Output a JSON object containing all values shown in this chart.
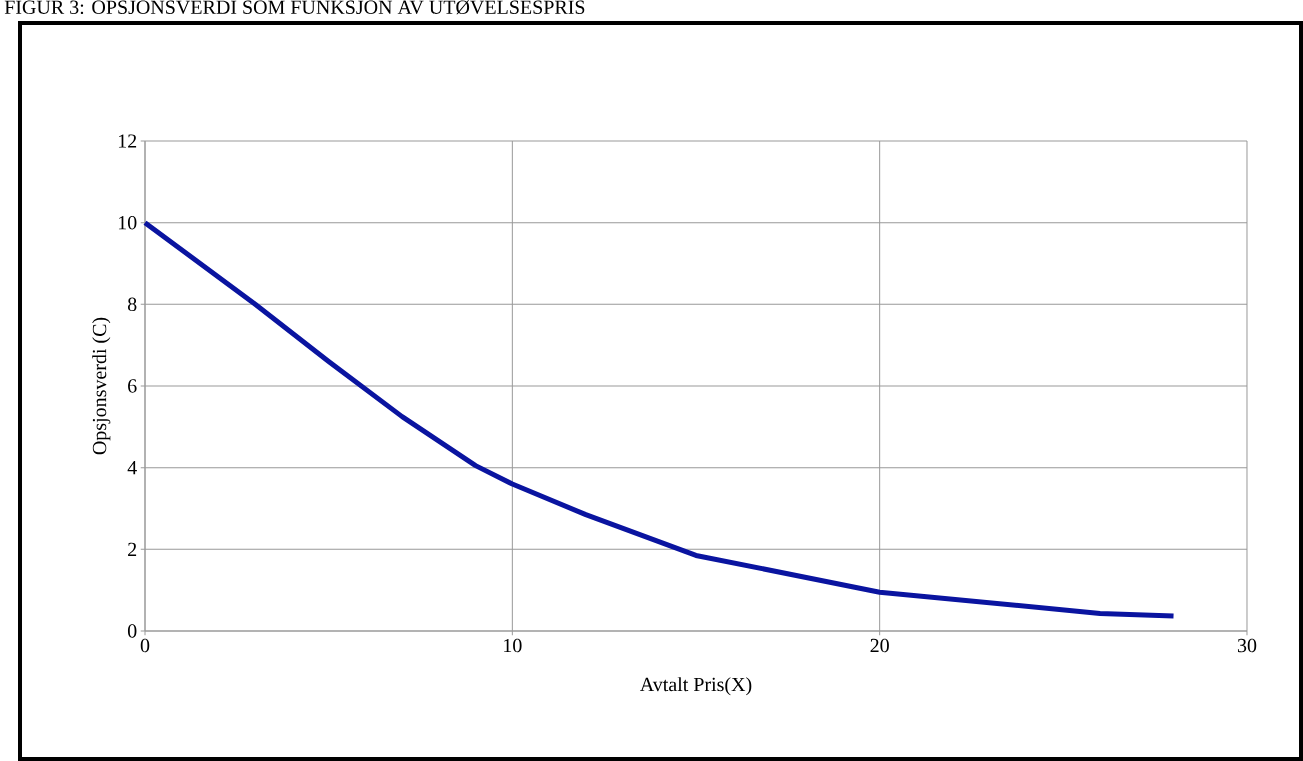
{
  "chart_data": {
    "type": "line",
    "title": "FIGUR 3: OPSJONSVERDI SOM FUNKSJON AV UTØVELSESPRIS",
    "xlabel": "Avtalt Pris(X)",
    "ylabel": "Opsjonsverdi (C)",
    "x": [
      0,
      3,
      5,
      7,
      9,
      10,
      12,
      15,
      20,
      26,
      28
    ],
    "series": [
      {
        "color": "#0a14a0",
        "values": [
          10,
          8.0,
          6.6,
          5.25,
          4.05,
          3.6,
          2.85,
          1.85,
          0.95,
          0.43,
          0.37
        ]
      }
    ],
    "xlim": [
      0,
      30
    ],
    "xticks": [
      0,
      10,
      20,
      30
    ],
    "ylim": [
      0,
      12
    ],
    "yticks": [
      0,
      2,
      4,
      6,
      8,
      10,
      12
    ],
    "grid": true,
    "marker": "none",
    "line_style": "solid"
  }
}
